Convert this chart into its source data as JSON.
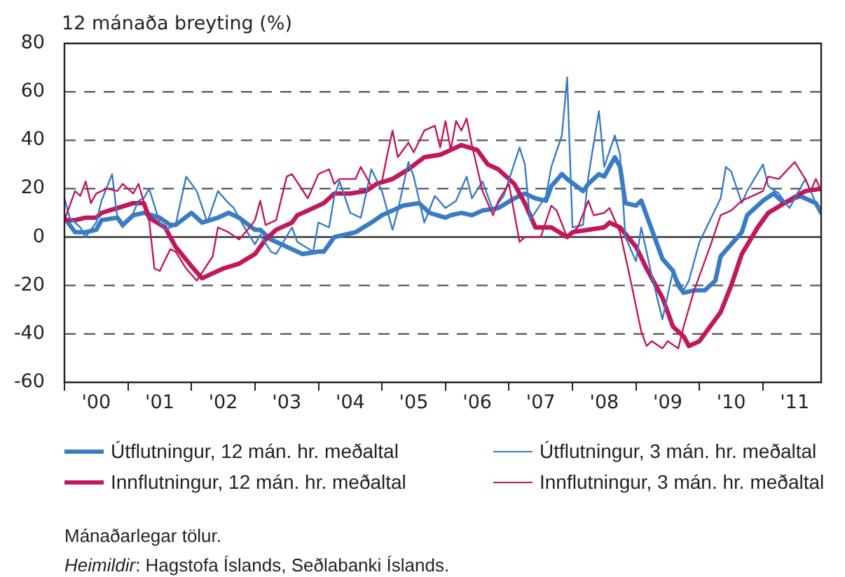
{
  "chart_data": {
    "type": "line",
    "ylabel": "12 mánaða breyting (%)",
    "xlim": [
      "2000-01",
      "2011-12"
    ],
    "xticks": [
      {
        "value": "2000-01",
        "label": null
      },
      {
        "value": "2000-07",
        "label": "'00"
      },
      {
        "value": "2001-01",
        "label": null
      },
      {
        "value": "2001-07",
        "label": "'01"
      },
      {
        "value": "2002-01",
        "label": null
      },
      {
        "value": "2002-07",
        "label": "'02"
      },
      {
        "value": "2003-01",
        "label": null
      },
      {
        "value": "2003-07",
        "label": "'03"
      },
      {
        "value": "2004-01",
        "label": null
      },
      {
        "value": "2004-07",
        "label": "'04"
      },
      {
        "value": "2005-01",
        "label": null
      },
      {
        "value": "2005-07",
        "label": "'05"
      },
      {
        "value": "2006-01",
        "label": null
      },
      {
        "value": "2006-07",
        "label": "'06"
      },
      {
        "value": "2007-01",
        "label": null
      },
      {
        "value": "2007-07",
        "label": "'07"
      },
      {
        "value": "2008-01",
        "label": null
      },
      {
        "value": "2008-07",
        "label": "'08"
      },
      {
        "value": "2009-01",
        "label": null
      },
      {
        "value": "2009-07",
        "label": "'09"
      },
      {
        "value": "2010-01",
        "label": null
      },
      {
        "value": "2010-07",
        "label": "'10"
      },
      {
        "value": "2011-01",
        "label": null
      },
      {
        "value": "2011-07",
        "label": "'11"
      }
    ],
    "ylim": [
      -60,
      80
    ],
    "yticks": [
      -60,
      -40,
      -20,
      0,
      20,
      40,
      60,
      80
    ],
    "grid": "y",
    "legend": "bottom",
    "marker": "none",
    "line_style": "solid",
    "series": [
      {
        "name": "Útflutningur, 12 mán. hr. meðaltal",
        "color": "#3a7cc4",
        "x": [
          "2000-01",
          "2000-03",
          "2000-05",
          "2000-07",
          "2000-08",
          "2000-11",
          "2000-12",
          "2001-02",
          "2001-04",
          "2001-07",
          "2001-09",
          "2001-10",
          "2002-01",
          "2002-02",
          "2002-03",
          "2002-06",
          "2002-08",
          "2002-10",
          "2003-01",
          "2003-02",
          "2003-04",
          "2003-06",
          "2003-08",
          "2003-10",
          "2004-01",
          "2004-02",
          "2004-04",
          "2004-08",
          "2004-11",
          "2005-01",
          "2005-03",
          "2005-05",
          "2005-08",
          "2005-10",
          "2006-01",
          "2006-02",
          "2006-04",
          "2006-06",
          "2006-08",
          "2006-11",
          "2007-02",
          "2007-04",
          "2007-06",
          "2007-08",
          "2007-09",
          "2007-11",
          "2007-12",
          "2008-03",
          "2008-04",
          "2008-06",
          "2008-07",
          "2008-09",
          "2008-10",
          "2008-11",
          "2009-01",
          "2009-02",
          "2009-03",
          "2009-04",
          "2009-06",
          "2009-08",
          "2009-09",
          "2009-10",
          "2009-12",
          "2010-02",
          "2010-04",
          "2010-05",
          "2010-07",
          "2010-09",
          "2010-10",
          "2011-01",
          "2011-03",
          "2011-05",
          "2011-08",
          "2011-09",
          "2011-11",
          "2011-12"
        ],
        "values": [
          8,
          2,
          2,
          3,
          7,
          8,
          5,
          9,
          10,
          8,
          5,
          5,
          10,
          8,
          6,
          8,
          10,
          8,
          3,
          3,
          -1,
          -3,
          -5,
          -7,
          -6,
          -6,
          0,
          2,
          6,
          9,
          11,
          13,
          14,
          10,
          8,
          9,
          10,
          9,
          11,
          12,
          16,
          18,
          16,
          15,
          21,
          26,
          24,
          19,
          22,
          26,
          25,
          33,
          29,
          14,
          13,
          15,
          9,
          3,
          -9,
          -14,
          -20,
          -23,
          -22,
          -22,
          -18,
          -8,
          -3,
          2,
          9,
          15,
          18,
          14,
          17,
          16,
          14,
          10
        ]
      },
      {
        "name": "Innflutningur, 12 mán. hr. meðaltal",
        "color": "#c0185c",
        "x": [
          "2000-01",
          "2000-03",
          "2000-05",
          "2000-07",
          "2000-08",
          "2000-11",
          "2001-02",
          "2001-04",
          "2001-05",
          "2001-08",
          "2001-10",
          "2002-01",
          "2002-03",
          "2002-05",
          "2002-07",
          "2002-10",
          "2003-01",
          "2003-03",
          "2003-05",
          "2003-08",
          "2003-09",
          "2003-11",
          "2004-02",
          "2004-04",
          "2004-07",
          "2004-10",
          "2004-12",
          "2005-03",
          "2005-06",
          "2005-09",
          "2005-12",
          "2006-02",
          "2006-04",
          "2006-07",
          "2006-09",
          "2006-11",
          "2007-02",
          "2007-04",
          "2007-06",
          "2007-09",
          "2007-12",
          "2008-01",
          "2008-04",
          "2008-07",
          "2008-08",
          "2008-10",
          "2009-01",
          "2009-03",
          "2009-06",
          "2009-08",
          "2009-10",
          "2009-11",
          "2010-01",
          "2010-03",
          "2010-05",
          "2010-07",
          "2010-09",
          "2010-12",
          "2011-02",
          "2011-05",
          "2011-09",
          "2011-12"
        ],
        "values": [
          7,
          7,
          8,
          8,
          10,
          12,
          14,
          14,
          8,
          4,
          -4,
          -12,
          -17,
          -15,
          -13,
          -11,
          -7,
          -1,
          3,
          6,
          9,
          11,
          14,
          18,
          18,
          19,
          22,
          24,
          28,
          33,
          34,
          36,
          38,
          36,
          30,
          28,
          22,
          14,
          4,
          4,
          0,
          2,
          3,
          4,
          6,
          4,
          -4,
          -13,
          -25,
          -37,
          -41,
          -45,
          -43,
          -37,
          -31,
          -20,
          -7,
          4,
          10,
          14,
          19,
          20
        ]
      },
      {
        "name": "Útflutningur, 3 mán. hr. meðaltal",
        "color": "#3a7cc4",
        "x": [
          "2000-01",
          "2000-02",
          "2000-04",
          "2000-05",
          "2000-07",
          "2000-08",
          "2000-10",
          "2000-11",
          "2000-12",
          "2001-02",
          "2001-03",
          "2001-04",
          "2001-05",
          "2001-07",
          "2001-08",
          "2001-10",
          "2001-12",
          "2002-02",
          "2002-04",
          "2002-06",
          "2002-08",
          "2002-09",
          "2002-11",
          "2003-01",
          "2003-02",
          "2003-04",
          "2003-05",
          "2003-08",
          "2003-09",
          "2003-12",
          "2004-01",
          "2004-03",
          "2004-04",
          "2004-05",
          "2004-07",
          "2004-09",
          "2004-11",
          "2005-01",
          "2005-03",
          "2005-04",
          "2005-06",
          "2005-07",
          "2005-09",
          "2005-11",
          "2006-01",
          "2006-03",
          "2006-05",
          "2006-06",
          "2006-08",
          "2006-10",
          "2006-12",
          "2007-03",
          "2007-04",
          "2007-05",
          "2007-08",
          "2007-09",
          "2007-11",
          "2007-12",
          "2008-01",
          "2008-03",
          "2008-04",
          "2008-06",
          "2008-07",
          "2008-09",
          "2008-10",
          "2008-11",
          "2009-01",
          "2009-02",
          "2009-04",
          "2009-06",
          "2009-08",
          "2009-10",
          "2009-11",
          "2010-01",
          "2010-03",
          "2010-05",
          "2010-06",
          "2010-07",
          "2010-09",
          "2010-10",
          "2011-01",
          "2011-02",
          "2011-04",
          "2011-06",
          "2011-09",
          "2011-10",
          "2011-12"
        ],
        "values": [
          16,
          8,
          4,
          0,
          6,
          15,
          26,
          8,
          4,
          10,
          15,
          16,
          20,
          6,
          3,
          5,
          25,
          19,
          6,
          19,
          14,
          12,
          4,
          -3,
          1,
          -6,
          -7,
          4,
          -2,
          -6,
          6,
          4,
          17,
          23,
          10,
          8,
          28,
          19,
          3,
          11,
          31,
          25,
          6,
          17,
          12,
          15,
          25,
          16,
          23,
          11,
          17,
          37,
          30,
          7,
          17,
          29,
          42,
          66,
          4,
          5,
          25,
          52,
          29,
          42,
          34,
          0,
          -10,
          4,
          -16,
          -34,
          -14,
          -22,
          -18,
          -2,
          7,
          16,
          29,
          27,
          14,
          19,
          30,
          21,
          18,
          12,
          24,
          19,
          9
        ]
      },
      {
        "name": "Innflutningur, 3 mán. hr. meðaltal",
        "color": "#c0185c",
        "x": [
          "2000-01",
          "2000-03",
          "2000-04",
          "2000-05",
          "2000-06",
          "2000-07",
          "2000-09",
          "2000-11",
          "2000-12",
          "2001-02",
          "2001-03",
          "2001-05",
          "2001-06",
          "2001-07",
          "2001-09",
          "2001-10",
          "2001-12",
          "2002-02",
          "2002-05",
          "2002-06",
          "2002-08",
          "2002-10",
          "2002-12",
          "2003-01",
          "2003-02",
          "2003-03",
          "2003-05",
          "2003-07",
          "2003-08",
          "2003-11",
          "2004-01",
          "2004-03",
          "2004-04",
          "2004-05",
          "2004-08",
          "2004-09",
          "2004-11",
          "2005-01",
          "2005-02",
          "2005-03",
          "2005-04",
          "2005-06",
          "2005-07",
          "2005-09",
          "2005-11",
          "2005-12",
          "2006-01",
          "2006-02",
          "2006-03",
          "2006-04",
          "2006-05",
          "2006-06",
          "2006-08",
          "2006-10",
          "2006-11",
          "2007-01",
          "2007-03",
          "2007-04",
          "2007-07",
          "2007-09",
          "2007-10",
          "2007-12",
          "2008-02",
          "2008-04",
          "2008-05",
          "2008-07",
          "2008-08",
          "2008-10",
          "2008-12",
          "2009-02",
          "2009-03",
          "2009-04",
          "2009-06",
          "2009-07",
          "2009-09",
          "2009-10",
          "2009-12",
          "2010-03",
          "2010-05",
          "2010-07",
          "2010-09",
          "2010-11",
          "2011-01",
          "2011-02",
          "2011-04",
          "2011-07",
          "2011-09",
          "2011-10",
          "2011-11",
          "2011-12"
        ],
        "values": [
          7,
          19,
          17,
          23,
          14,
          18,
          20,
          19,
          22,
          18,
          22,
          7,
          -13,
          -14,
          -5,
          -6,
          -13,
          -18,
          -8,
          4,
          2,
          -1,
          4,
          7,
          15,
          5,
          7,
          25,
          26,
          16,
          26,
          28,
          22,
          24,
          24,
          29,
          21,
          23,
          34,
          44,
          33,
          39,
          35,
          44,
          46,
          37,
          48,
          36,
          48,
          44,
          49,
          38,
          19,
          9,
          15,
          22,
          -2,
          0,
          0,
          13,
          11,
          0,
          4,
          15,
          9,
          10,
          12,
          2,
          -18,
          -39,
          -45,
          -43,
          -46,
          -43,
          -46,
          -37,
          -22,
          -4,
          9,
          11,
          15,
          17,
          19,
          25,
          24,
          31,
          24,
          19,
          24,
          19
        ]
      }
    ],
    "annotations": [
      "Mánaðarlegar tölur.",
      "Heimildir: Hagstofa Íslands, Seðlabanki Íslands."
    ]
  }
}
